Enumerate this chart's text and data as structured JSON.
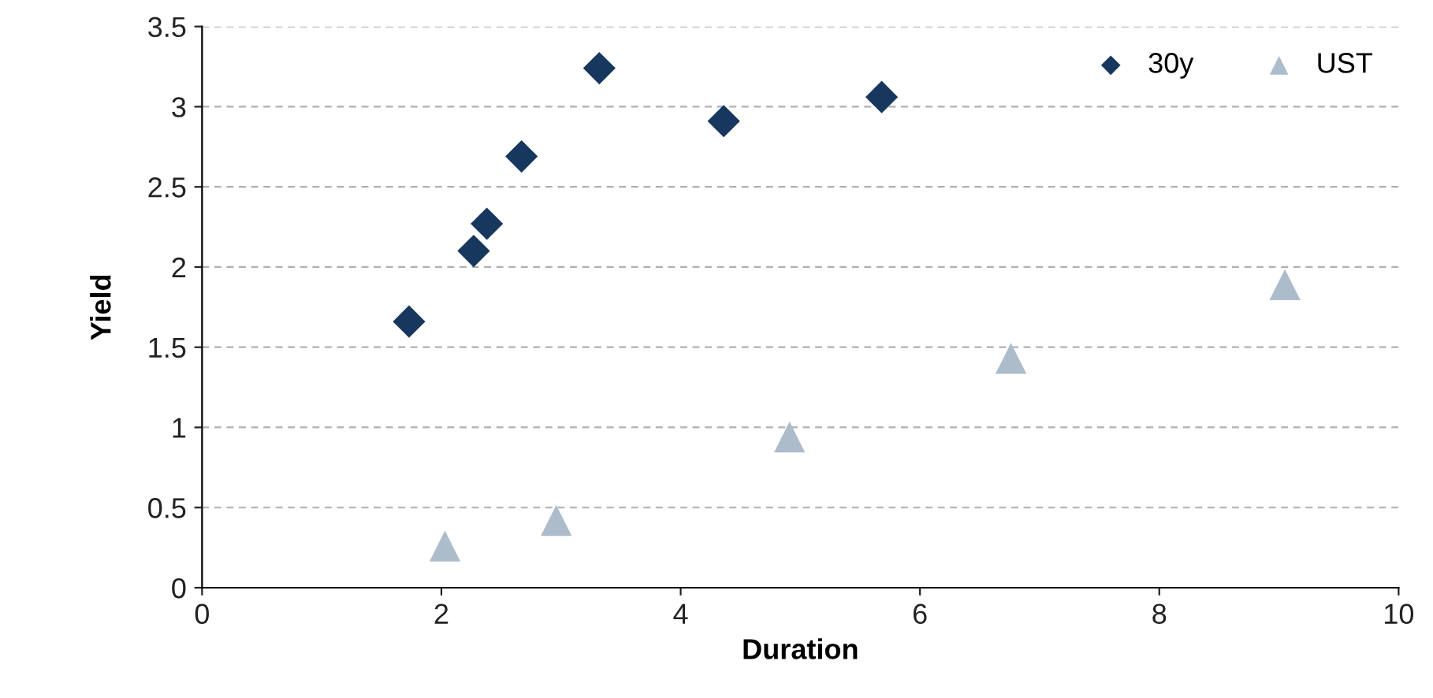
{
  "chart_data": {
    "type": "scatter",
    "xlabel": "Duration",
    "ylabel": "Yield",
    "xlim": [
      0,
      10
    ],
    "xticks": [
      0,
      2,
      4,
      6,
      8,
      10
    ],
    "ylim": [
      0,
      3.5
    ],
    "yticks": [
      0,
      0.5,
      1,
      1.5,
      2,
      2.5,
      3,
      3.5
    ],
    "grid": "y",
    "legend": "top right",
    "series": [
      {
        "name": "30y",
        "color": "#17375e",
        "marker": "diamond",
        "x": [
          1.73,
          2.27,
          2.38,
          2.67,
          3.32,
          4.36,
          5.68
        ],
        "values": [
          1.66,
          2.1,
          2.27,
          2.69,
          3.24,
          2.91,
          3.06
        ]
      },
      {
        "name": "UST",
        "color": "#adbccb",
        "marker": "triangle",
        "x": [
          2.03,
          2.96,
          4.91,
          6.76,
          9.05
        ],
        "values": [
          0.26,
          0.42,
          0.94,
          1.43,
          1.89
        ]
      }
    ]
  }
}
